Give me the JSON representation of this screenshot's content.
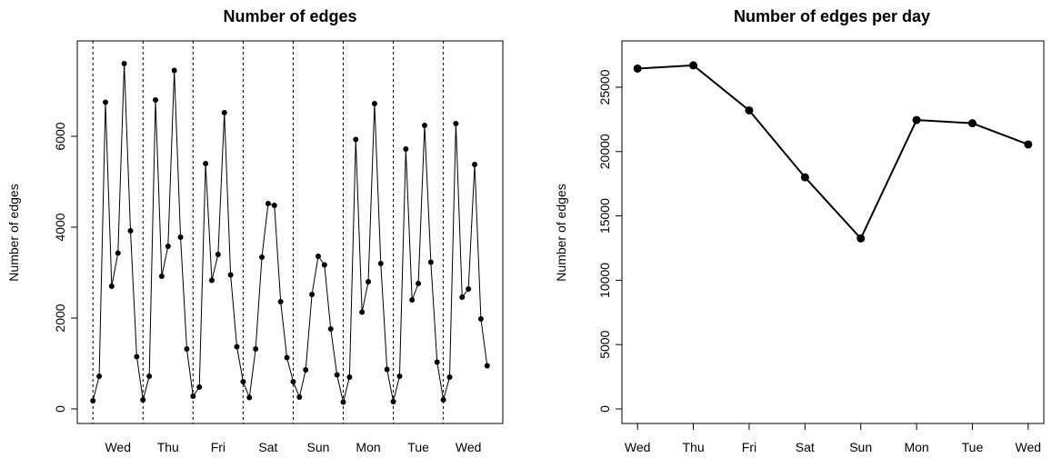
{
  "chart_data": [
    {
      "type": "line",
      "title": "Number of edges",
      "ylabel": "Number of edges",
      "x": [
        1,
        2,
        3,
        4,
        5,
        6,
        7,
        8,
        9,
        10,
        11,
        12,
        13,
        14,
        15,
        16,
        17,
        18,
        19,
        20,
        21,
        22,
        23,
        24,
        25,
        26,
        27,
        28,
        29,
        30,
        31,
        32,
        33,
        34,
        35,
        36,
        37,
        38,
        39,
        40,
        41,
        42,
        43,
        44,
        45,
        46,
        47,
        48,
        49,
        50,
        51,
        52,
        53,
        54,
        55,
        56,
        57,
        58,
        59,
        60,
        61,
        62,
        63,
        64
      ],
      "series": [
        {
          "name": "Number of edges",
          "color": "#000000",
          "values": [
            180,
            720,
            6750,
            2700,
            3430,
            7600,
            3920,
            1150,
            200,
            720,
            6800,
            2920,
            3580,
            7450,
            3780,
            1320,
            280,
            480,
            5400,
            2830,
            3400,
            6520,
            2950,
            1370,
            600,
            250,
            1320,
            3340,
            4520,
            4480,
            2360,
            1130,
            600,
            260,
            860,
            2520,
            3360,
            3170,
            1760,
            750,
            150,
            700,
            5930,
            2130,
            2800,
            6720,
            3200,
            870,
            160,
            720,
            5720,
            2400,
            2760,
            6240,
            3230,
            1030,
            200,
            700,
            6280,
            2460,
            2640,
            5380,
            1980,
            950
          ]
        }
      ],
      "vlines": [
        1,
        9,
        17,
        25,
        33,
        41,
        49,
        57
      ],
      "xlim": [
        -1.5,
        66.5
      ],
      "xticks": [
        {
          "value": 5,
          "label": "Wed"
        },
        {
          "value": 13,
          "label": "Thu"
        },
        {
          "value": 21,
          "label": "Fri"
        },
        {
          "value": 29,
          "label": "Sat"
        },
        {
          "value": 37,
          "label": "Sun"
        },
        {
          "value": 45,
          "label": "Mon"
        },
        {
          "value": 53,
          "label": "Tue"
        },
        {
          "value": 61,
          "label": "Wed"
        }
      ],
      "xtick_marks": false,
      "ylim": [
        -320,
        8100
      ],
      "yticks": [
        0,
        2000,
        4000,
        6000
      ],
      "marker_size": 3
    },
    {
      "type": "line",
      "title": "Number of edges per day",
      "ylabel": "Number of edges",
      "categories": [
        "Wed",
        "Thu",
        "Fri",
        "Sat",
        "Sun",
        "Mon",
        "Tue",
        "Wed"
      ],
      "series": [
        {
          "name": "Number of edges per day",
          "color": "#000000",
          "values": [
            26450,
            26700,
            23200,
            18000,
            13250,
            22450,
            22200,
            20550
          ]
        }
      ],
      "xlim": [
        -0.28,
        7.28
      ],
      "xtick_marks": true,
      "ylim": [
        -1130,
        28600
      ],
      "yticks": [
        0,
        5000,
        10000,
        15000,
        20000,
        25000
      ],
      "marker_size": 4.5
    }
  ]
}
